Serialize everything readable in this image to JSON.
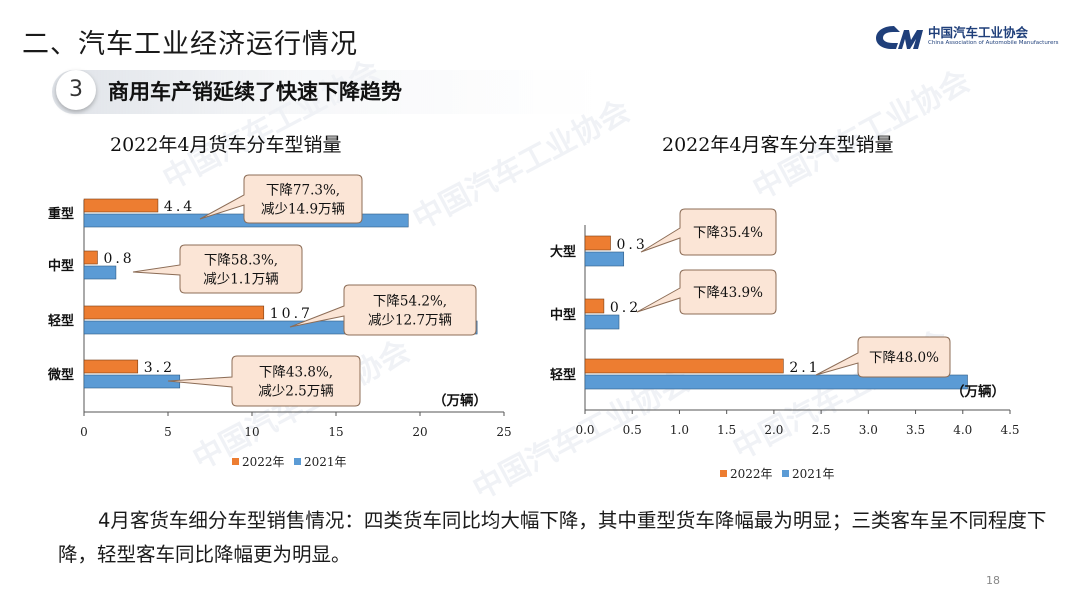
{
  "header": {
    "title": "二、汽车工业经济运行情况",
    "logo_cn": "中国汽车工业协会",
    "logo_en": "China Association of Automobile Manufacturers"
  },
  "section": {
    "number": "3",
    "title": "商用车产销延续了快速下降趋势"
  },
  "colors": {
    "series_2022": "#ED7D31",
    "series_2021": "#5B9BD5",
    "callout_fill": "#FBE5D6",
    "callout_border": "#8C6D57"
  },
  "chart_data": [
    {
      "type": "bar",
      "orientation": "horizontal",
      "title": "2022年4月货车分车型销量",
      "unit_label": "（万辆）",
      "categories": [
        "重型",
        "中型",
        "轻型",
        "微型"
      ],
      "series": [
        {
          "name": "2022年",
          "values": [
            4.4,
            0.8,
            10.7,
            3.2
          ]
        },
        {
          "name": "2021年",
          "values": [
            19.3,
            1.9,
            23.4,
            5.7
          ]
        }
      ],
      "value_labels": [
        "4.4",
        "0.8",
        "10.7",
        "3.2"
      ],
      "annotations": [
        "下降77.3%,减少14.9万辆",
        "下降58.3%,减少1.1万辆",
        "下降54.2%,减少12.7万辆",
        "下降43.8%,减少2.5万辆"
      ],
      "xlim": [
        0,
        25
      ],
      "xticks": [
        "0",
        "5",
        "10",
        "15",
        "20",
        "25"
      ],
      "legend_position": "bottom"
    },
    {
      "type": "bar",
      "orientation": "horizontal",
      "title": "2022年4月客车分车型销量",
      "unit_label": "（万辆）",
      "categories": [
        "大型",
        "中型",
        "轻型"
      ],
      "series": [
        {
          "name": "2022年",
          "values": [
            0.27,
            0.2,
            2.1
          ]
        },
        {
          "name": "2021年",
          "values": [
            0.41,
            0.36,
            4.05
          ]
        }
      ],
      "value_labels": [
        "0.3",
        "0.2",
        "2.1"
      ],
      "annotations": [
        "下降35.4%",
        "下降43.9%",
        "下降48.0%"
      ],
      "xlim": [
        0,
        4.5
      ],
      "xticks": [
        "0.0",
        "0.5",
        "1.0",
        "1.5",
        "2.0",
        "2.5",
        "3.0",
        "3.5",
        "4.0",
        "4.5"
      ],
      "legend_position": "bottom"
    }
  ],
  "summary": "4月客货车细分车型销售情况：四类货车同比均大幅下降，其中重型货车降幅最为明显；三类客车呈不同程度下降，轻型客车同比降幅更为明显。",
  "page_number": "18"
}
